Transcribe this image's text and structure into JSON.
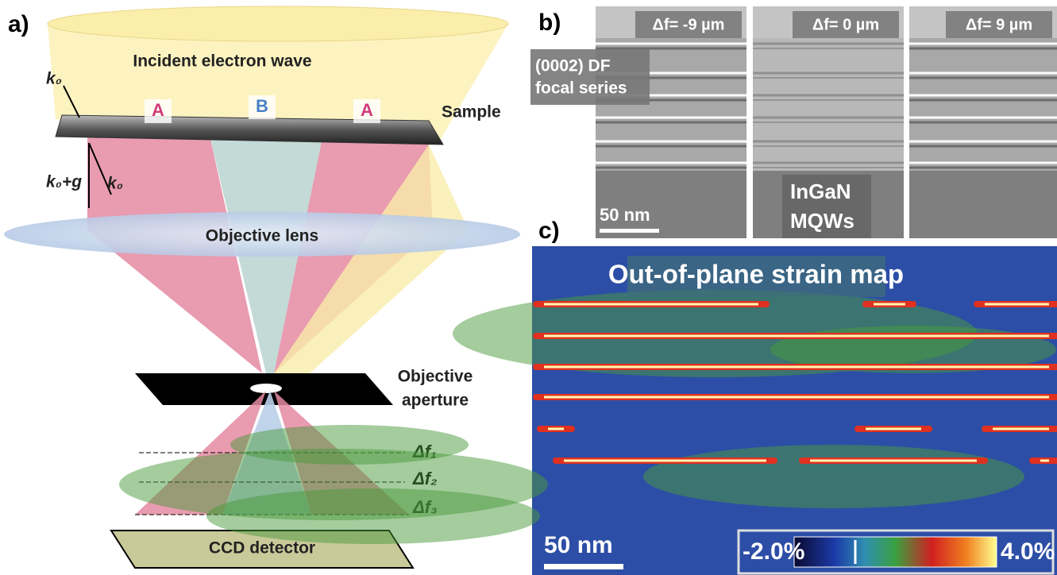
{
  "panel_a": {
    "label": "a)",
    "incident_wave": "Incident electron wave",
    "k0_top": "k₀",
    "region_left": "A",
    "region_middle": "B",
    "region_right": "A",
    "sample": "Sample",
    "k0_plus_g": "k₀+g",
    "k0_bottom": "k₀",
    "objective_lens": "Objective lens",
    "aperture_line1": "Objective",
    "aperture_line2": "aperture",
    "defocus_1": "Δf₁",
    "defocus_2": "Δf₂",
    "defocus_3": "Δf₃",
    "ccd_detector": "CCD detector"
  },
  "panel_b": {
    "label": "b)",
    "images": [
      {
        "defocus": "Δf= -9 µm"
      },
      {
        "defocus": "Δf= 0 µm"
      },
      {
        "defocus": "Δf= 9 µm"
      }
    ],
    "series_line1": "(0002) DF",
    "series_line2": "focal series",
    "sample_line1": "InGaN",
    "sample_line2": "MQWs",
    "scale_bar": "50 nm"
  },
  "panel_c": {
    "label": "c)",
    "title": "Out-of-plane strain map",
    "scale_bar": "50 nm",
    "colorbar_min": "-2.0%",
    "colorbar_max": "4.0%"
  }
}
